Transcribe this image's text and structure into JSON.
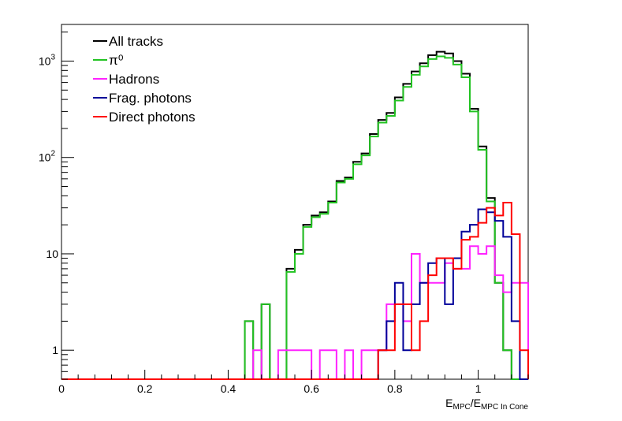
{
  "chart_data": {
    "type": "histogram-step",
    "x_scale": "linear",
    "y_scale": "log",
    "xlim": [
      0,
      1.12
    ],
    "ylim": [
      0.5,
      2400
    ],
    "bin_width": 0.02,
    "bin_start": 0,
    "x_tick_labels": [
      "0",
      "0.2",
      "0.4",
      "0.6",
      "0.8",
      "1"
    ],
    "x_tick_values": [
      0,
      0.2,
      0.4,
      0.6,
      0.8,
      1.0
    ],
    "y_tick_values": [
      1,
      10,
      100,
      1000
    ],
    "y_tick_labels": [
      {
        "base": "1",
        "sup": ""
      },
      {
        "base": "10",
        "sup": ""
      },
      {
        "base": "10",
        "sup": "2"
      },
      {
        "base": "10",
        "sup": "3"
      }
    ],
    "xlabel": {
      "main": "E",
      "sub1": "MPC",
      "mid": "/E",
      "sub2": "MPC In Cone"
    },
    "ylabel": "",
    "grid": false,
    "legend_position": "top-left",
    "legend": [
      {
        "label": "All tracks",
        "color": "#000000"
      },
      {
        "label": "π⁰",
        "color": "#22c322"
      },
      {
        "label": "Hadrons",
        "color": "#ff22ff"
      },
      {
        "label": "Frag. photons",
        "color": "#000099"
      },
      {
        "label": "Direct photons",
        "color": "#ff0000"
      }
    ],
    "series": [
      {
        "key": "all",
        "color": "#000000",
        "values": [
          0,
          0,
          0,
          0,
          0,
          0,
          0,
          0,
          0,
          0,
          0,
          0,
          0,
          0,
          0,
          0,
          0,
          0,
          0,
          0,
          0,
          0,
          2,
          0,
          3,
          0,
          0,
          7,
          11,
          20,
          25,
          27,
          35,
          57,
          62,
          90,
          110,
          175,
          245,
          290,
          420,
          580,
          780,
          950,
          1150,
          1250,
          1200,
          1000,
          740,
          320,
          130,
          38,
          5,
          1,
          0,
          0
        ]
      },
      {
        "key": "pi0",
        "color": "#22c322",
        "values": [
          0,
          0,
          0,
          0,
          0,
          0,
          0,
          0,
          0,
          0,
          0,
          0,
          0,
          0,
          0,
          0,
          0,
          0,
          0,
          0,
          0,
          0,
          2,
          0,
          3,
          0,
          0,
          6.5,
          10,
          19,
          24,
          26,
          34,
          55,
          60,
          85,
          105,
          165,
          230,
          270,
          390,
          540,
          720,
          880,
          1050,
          1120,
          1080,
          920,
          680,
          300,
          120,
          35,
          5,
          1,
          0,
          0
        ]
      },
      {
        "key": "hadrons",
        "color": "#ff22ff",
        "values": [
          0,
          0,
          0,
          0,
          0,
          0,
          0,
          0,
          0,
          0,
          0,
          0,
          0,
          0,
          0,
          0,
          0,
          0,
          0,
          0,
          0,
          0,
          0,
          1,
          0,
          0,
          1,
          1,
          1,
          1,
          0,
          1,
          1,
          0,
          1,
          0,
          1,
          1,
          1,
          3,
          3,
          2,
          10,
          5,
          5,
          5,
          8,
          7,
          7,
          12,
          10,
          12,
          6,
          4,
          5,
          5,
          1,
          0,
          0,
          0
        ]
      },
      {
        "key": "frag",
        "color": "#000099",
        "values": [
          0,
          0,
          0,
          0,
          0,
          0,
          0,
          0,
          0,
          0,
          0,
          0,
          0,
          0,
          0,
          0,
          0,
          0,
          0,
          0,
          0,
          0,
          0,
          0,
          0,
          0,
          0,
          0,
          0,
          0,
          0,
          0,
          0,
          0,
          0,
          0,
          0,
          0,
          1,
          2,
          5,
          1,
          3,
          5,
          8,
          9,
          3,
          9,
          17,
          20,
          29,
          27,
          22,
          15,
          2,
          0,
          0,
          0,
          0,
          0
        ]
      },
      {
        "key": "direct",
        "color": "#ff0000",
        "values": [
          0,
          0,
          0,
          0,
          0,
          0,
          0,
          0,
          0,
          0,
          0,
          0,
          0,
          0,
          0,
          0,
          0,
          0,
          0,
          0,
          0,
          0,
          0,
          0,
          0,
          0,
          0,
          0,
          0,
          0,
          0,
          0,
          0,
          0,
          0,
          0,
          0,
          0,
          1,
          1,
          3,
          3,
          1,
          2,
          6,
          9,
          9,
          7,
          14,
          15,
          21,
          30,
          25,
          34,
          16,
          1,
          0,
          0,
          0,
          0
        ]
      }
    ]
  }
}
